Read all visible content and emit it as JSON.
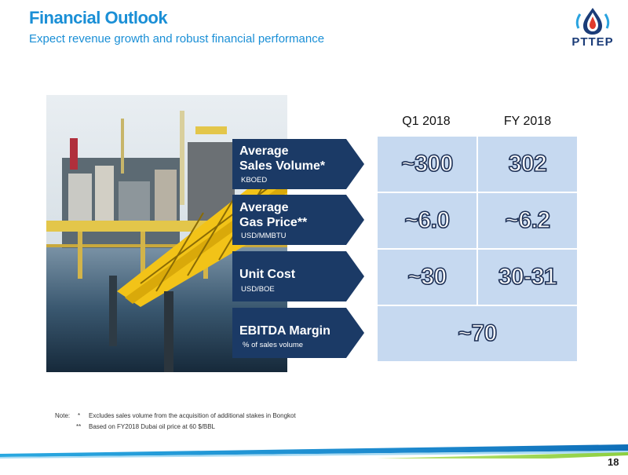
{
  "header": {
    "title": "Financial Outlook",
    "subtitle": "Expect revenue growth and robust financial performance"
  },
  "logo": {
    "text": "PTTEP"
  },
  "table": {
    "columns": [
      "Q1 2018",
      "FY 2018"
    ],
    "rows": [
      {
        "label_line1": "Average",
        "label_line2": "Sales Volume*",
        "unit": "KBOED",
        "values": [
          "~300",
          "302"
        ]
      },
      {
        "label_line1": "Average",
        "label_line2": "Gas Price**",
        "unit": "USD/MMBTU",
        "values": [
          "~6.0",
          "~6.2"
        ]
      },
      {
        "label_line1": "Unit Cost",
        "label_line2": "",
        "unit": "USD/BOE",
        "values": [
          "~30",
          "30-31"
        ]
      },
      {
        "label_line1": "EBITDA Margin",
        "label_line2": "",
        "unit": "% of sales volume",
        "values": [
          "~70"
        ]
      }
    ]
  },
  "notes": {
    "prefix": "Note:",
    "items": [
      {
        "marker": "*",
        "text": "Excludes sales volume from the acquisition of additional stakes in Bongkot"
      },
      {
        "marker": "**",
        "text": "Based on FY2018 Dubai oil price at 60 $/BBL"
      }
    ]
  },
  "page_number": "18",
  "colors": {
    "accent": "#1a8fd6",
    "label_box": "#1b3a66",
    "cell_fill": "#c6d9f0",
    "cell_outline": "#1c2f55"
  }
}
